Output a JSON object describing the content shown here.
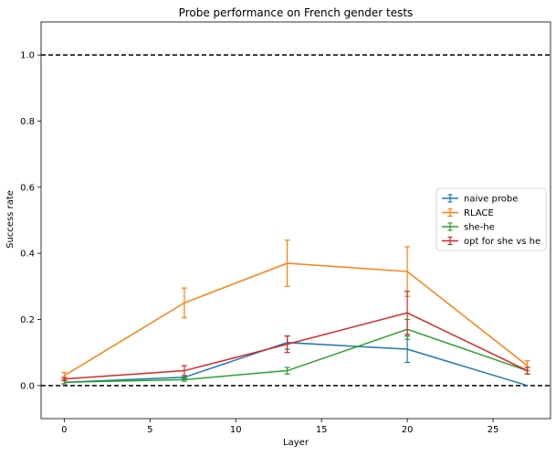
{
  "chart_data": {
    "type": "line",
    "title": "Probe performance on French gender tests",
    "xlabel": "Layer",
    "ylabel": "Success rate",
    "xlim": [
      -1.35,
      28.35
    ],
    "ylim": [
      -0.1,
      1.1
    ],
    "x_ticks": [
      0,
      5,
      10,
      15,
      20,
      25
    ],
    "y_ticks": [
      0.0,
      0.2,
      0.4,
      0.6,
      0.8,
      1.0
    ],
    "x_tick_labels": [
      "0",
      "5",
      "10",
      "15",
      "20",
      "25"
    ],
    "y_tick_labels": [
      "0.0",
      "0.2",
      "0.4",
      "0.6",
      "0.8",
      "1.0"
    ],
    "hlines": [
      {
        "y": 1.0,
        "style": "dashed",
        "color": "#000000"
      },
      {
        "y": 0.0,
        "style": "dashed",
        "color": "#000000"
      }
    ],
    "grid": false,
    "legend_position": "center-right",
    "series": [
      {
        "name": "naive probe",
        "color": "#1f77b4",
        "x": [
          0,
          7,
          13,
          20,
          27
        ],
        "y": [
          0.01,
          0.025,
          0.13,
          0.11,
          0.0
        ],
        "err": [
          0.005,
          0.005,
          0.02,
          0.04,
          0.0
        ]
      },
      {
        "name": "RLACE",
        "color": "#ff7f0e",
        "x": [
          0,
          7,
          13,
          20,
          27
        ],
        "y": [
          0.03,
          0.25,
          0.37,
          0.345,
          0.06
        ],
        "err": [
          0.01,
          0.045,
          0.07,
          0.075,
          0.015
        ]
      },
      {
        "name": "she-he",
        "color": "#2ca02c",
        "x": [
          0,
          7,
          13,
          20,
          27
        ],
        "y": [
          0.01,
          0.018,
          0.045,
          0.17,
          0.045
        ],
        "err": [
          0.005,
          0.005,
          0.01,
          0.03,
          0.01
        ]
      },
      {
        "name": "opt for she vs he",
        "color": "#d62728",
        "x": [
          0,
          7,
          13,
          20,
          27
        ],
        "y": [
          0.02,
          0.045,
          0.125,
          0.22,
          0.045
        ],
        "err": [
          0.005,
          0.015,
          0.025,
          0.065,
          0.01
        ]
      }
    ]
  }
}
